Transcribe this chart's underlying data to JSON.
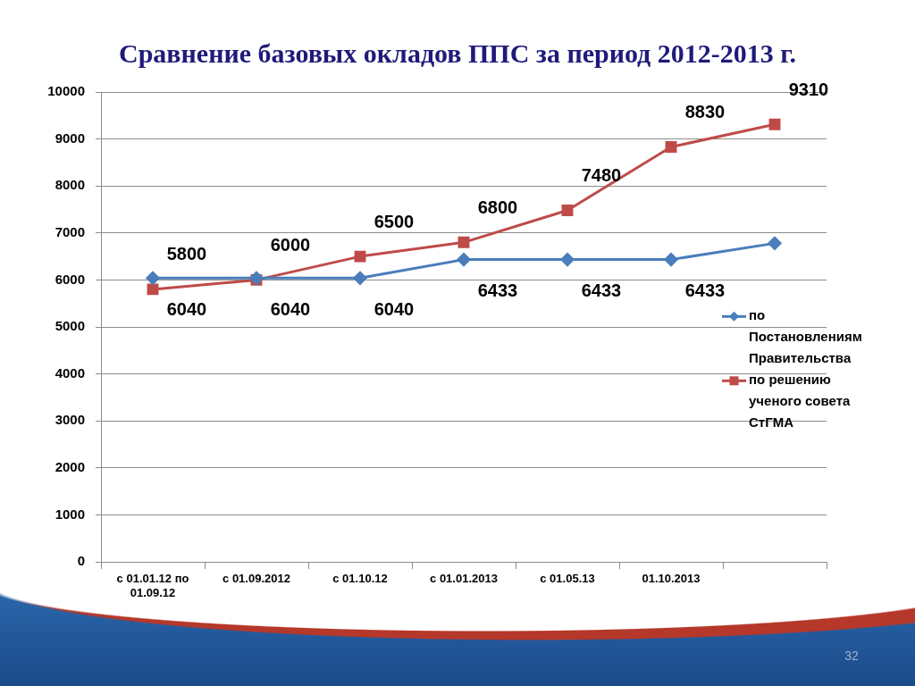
{
  "chart_data": {
    "type": "line",
    "title": "Сравнение базовых окладов ППС за период 2012-2013 г.",
    "categories": [
      "с 01.01.12 по 01.09.12",
      "с 01.09.2012",
      "с 01.10.12",
      "с 01.01.2013",
      "с 01.05.13",
      "01.10.2013",
      null
    ],
    "series": [
      {
        "name": "по Постановлениям Правительства",
        "color": "#4a7ebb",
        "marker": "diamond",
        "values": [
          6040,
          6040,
          6040,
          6433,
          6433,
          6433,
          6780
        ],
        "value_labels": [
          "6040",
          "6040",
          "6040",
          "6433",
          "6433",
          "6433",
          null
        ]
      },
      {
        "name": "по решению ученого совета СтГМА",
        "color": "#be4b48",
        "marker": "square",
        "values": [
          5800,
          6000,
          6500,
          6800,
          7480,
          8830,
          9310
        ],
        "value_labels": [
          "5800",
          "6000",
          "6500",
          "6800",
          "7480",
          "8830",
          "9310"
        ]
      }
    ],
    "ylim": [
      0,
      10000
    ],
    "yticks": [
      0,
      1000,
      2000,
      3000,
      4000,
      5000,
      6000,
      7000,
      8000,
      9000,
      10000
    ],
    "grid": "y",
    "legend": "right",
    "annotations": [
      "32"
    ]
  }
}
